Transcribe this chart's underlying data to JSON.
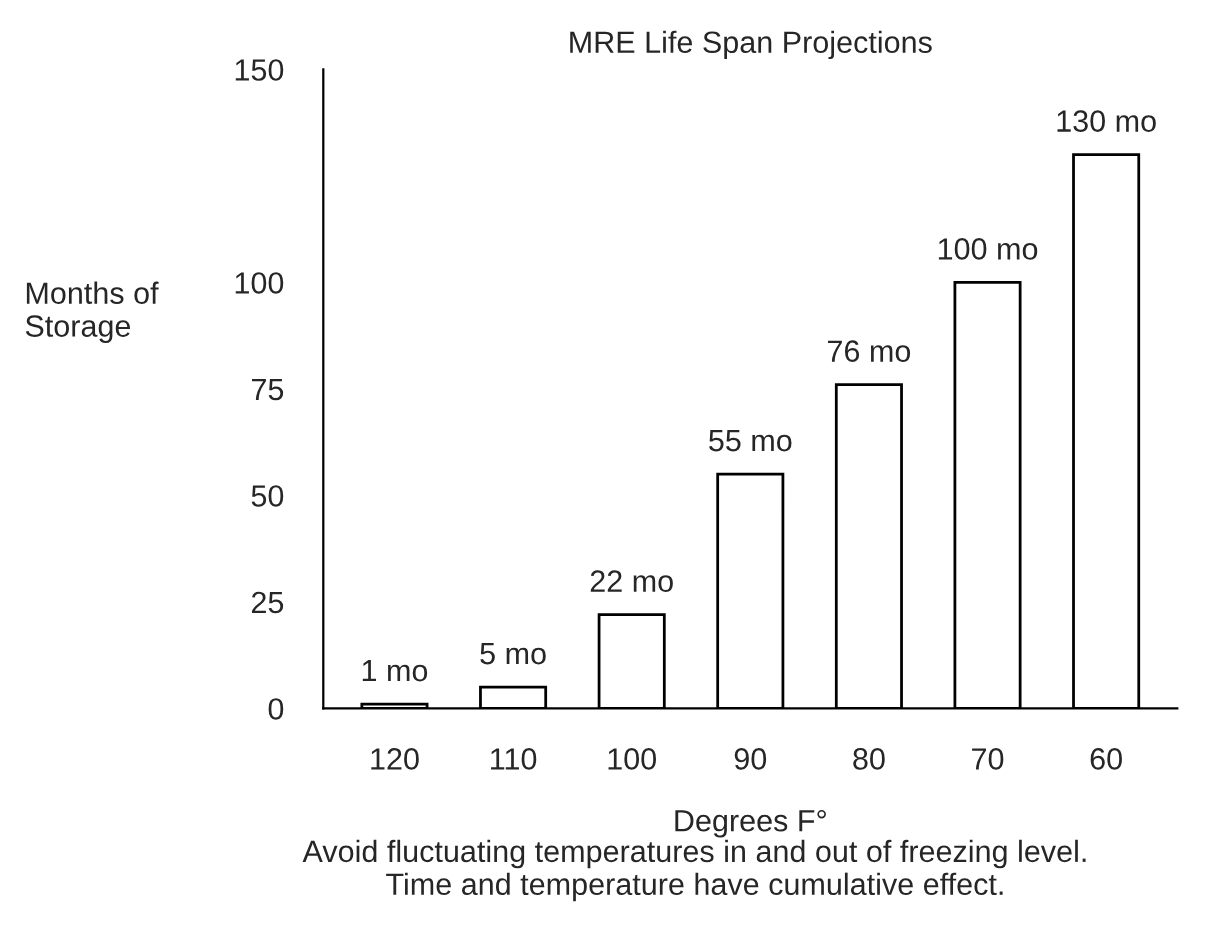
{
  "chart_data": {
    "type": "bar",
    "title": "MRE Life Span Projections",
    "xlabel": "Degrees F°",
    "ylabel": "Months of\nStorage",
    "categories": [
      "120",
      "110",
      "100",
      "90",
      "80",
      "70",
      "60"
    ],
    "values": [
      1,
      5,
      22,
      55,
      76,
      100,
      130
    ],
    "value_labels": [
      "1 mo",
      "5 mo",
      "22 mo",
      "55 mo",
      "76 mo",
      "100 mo",
      "130 mo"
    ],
    "color": "#ffffff",
    "ylim": [
      0,
      150
    ],
    "yticks": [
      0,
      25,
      50,
      75,
      100,
      150
    ],
    "grid": false,
    "legend": false,
    "annotations": [
      "Avoid fluctuating temperatures in and out of freezing level.\nTime and temperature have cumulative effect."
    ]
  }
}
